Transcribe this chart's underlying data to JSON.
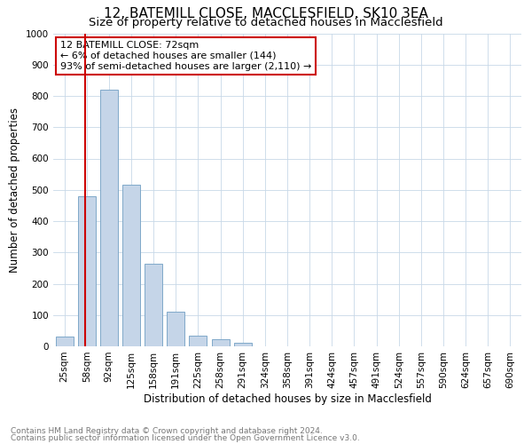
{
  "title": "12, BATEMILL CLOSE, MACCLESFIELD, SK10 3EA",
  "subtitle": "Size of property relative to detached houses in Macclesfield",
  "xlabel": "Distribution of detached houses by size in Macclesfield",
  "ylabel": "Number of detached properties",
  "footnote1": "Contains HM Land Registry data © Crown copyright and database right 2024.",
  "footnote2": "Contains public sector information licensed under the Open Government Licence v3.0.",
  "bins": [
    "25sqm",
    "58sqm",
    "92sqm",
    "125sqm",
    "158sqm",
    "191sqm",
    "225sqm",
    "258sqm",
    "291sqm",
    "324sqm",
    "358sqm",
    "391sqm",
    "424sqm",
    "457sqm",
    "491sqm",
    "524sqm",
    "557sqm",
    "590sqm",
    "624sqm",
    "657sqm",
    "690sqm"
  ],
  "values": [
    30,
    480,
    820,
    515,
    265,
    110,
    35,
    22,
    10,
    0,
    0,
    0,
    0,
    0,
    0,
    0,
    0,
    0,
    0,
    0
  ],
  "bar_color": "#c5d5e8",
  "bar_edge_color": "#7fa8c9",
  "property_line_color": "#cc0000",
  "annotation_text": "12 BATEMILL CLOSE: 72sqm\n← 6% of detached houses are smaller (144)\n93% of semi-detached houses are larger (2,110) →",
  "annotation_box_color": "#ffffff",
  "annotation_box_edge_color": "#cc0000",
  "ylim": [
    0,
    1000
  ],
  "yticks": [
    0,
    100,
    200,
    300,
    400,
    500,
    600,
    700,
    800,
    900,
    1000
  ],
  "background_color": "#ffffff",
  "grid_color": "#c8d8e8",
  "title_fontsize": 11,
  "subtitle_fontsize": 9.5,
  "axis_label_fontsize": 8.5,
  "tick_fontsize": 7.5,
  "annotation_fontsize": 8,
  "footnote_fontsize": 6.5
}
